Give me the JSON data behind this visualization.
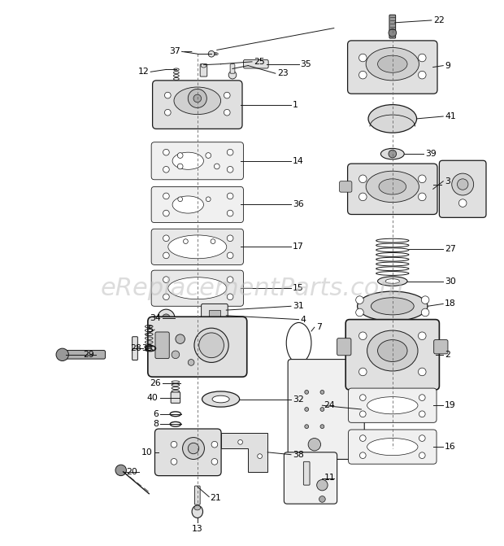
{
  "background_color": "#ffffff",
  "watermark": "eReplacementParts.com",
  "watermark_color": "#bbbbbb",
  "watermark_alpha": 0.5,
  "watermark_fontsize": 22,
  "fig_width": 6.2,
  "fig_height": 6.71,
  "dpi": 100
}
